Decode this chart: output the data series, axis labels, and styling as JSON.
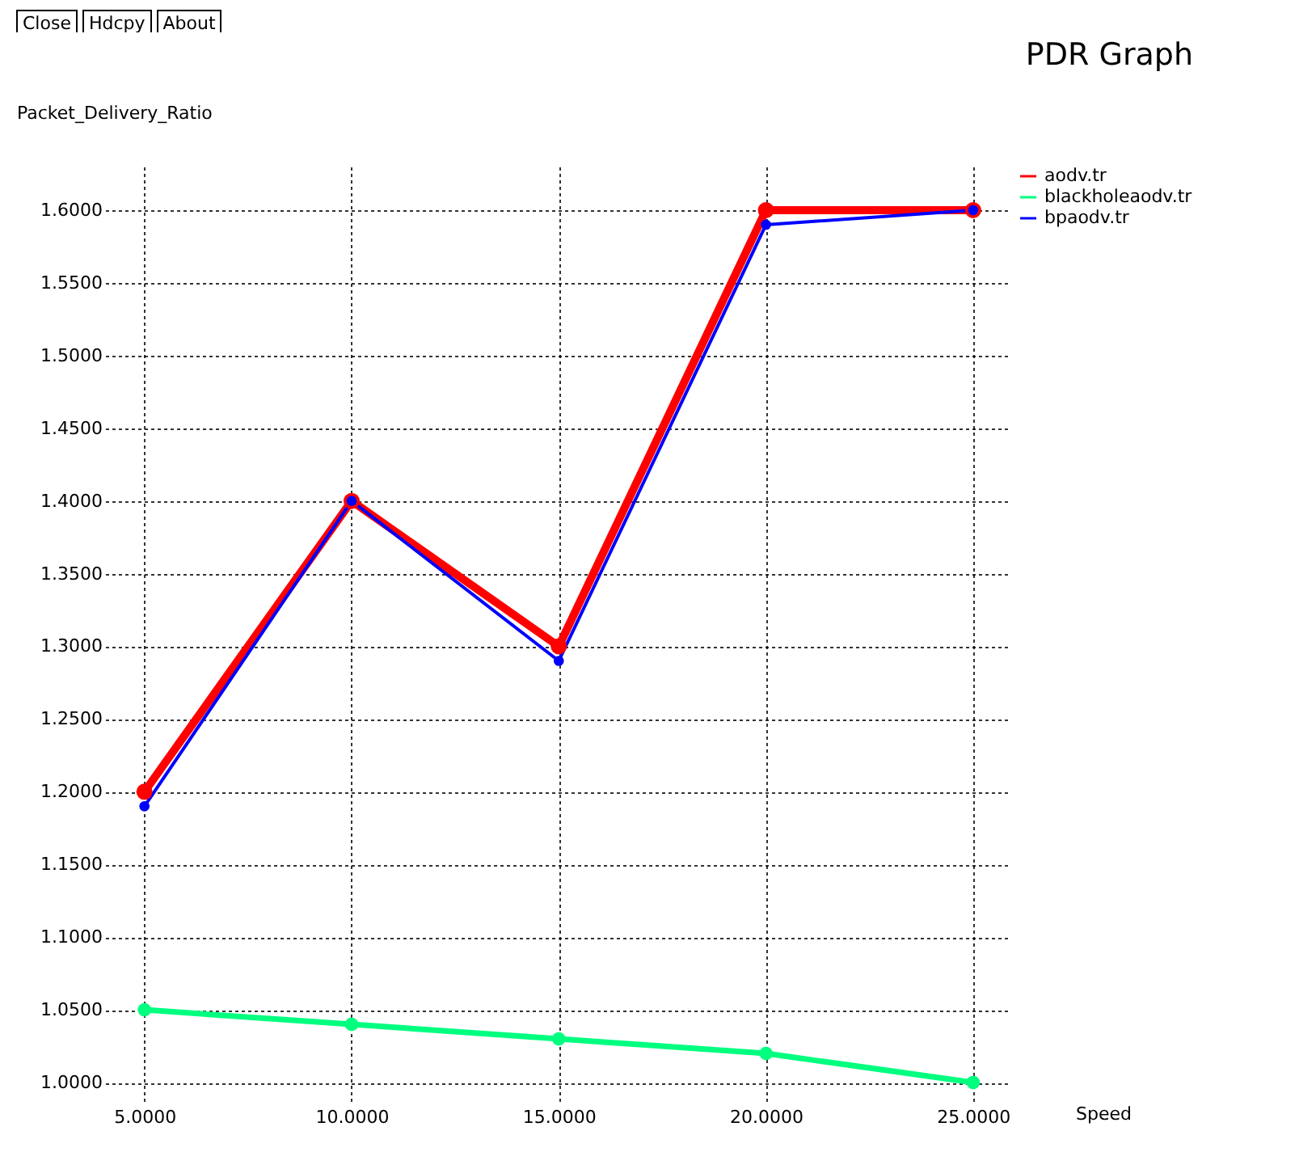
{
  "chart_data": {
    "type": "line",
    "title": "PDR Graph",
    "xlabel": "Speed",
    "ylabel": "Packet_Delivery_Ratio",
    "annotations": [
      "Close",
      "Hdcpy",
      "About"
    ],
    "x": [
      5,
      10,
      15,
      20,
      25
    ],
    "series": [
      {
        "name": "aodv.tr",
        "color": "#ff0000",
        "values": [
          1.2,
          1.4,
          1.3,
          1.6,
          1.6
        ]
      },
      {
        "name": "blackholeaodv.tr",
        "color": "#00ff7f",
        "values": [
          1.05,
          1.04,
          1.03,
          1.02,
          1.0
        ]
      },
      {
        "name": "bpaodv.tr",
        "color": "#0000ff",
        "values": [
          1.19,
          1.4,
          1.29,
          1.59,
          1.6
        ]
      }
    ],
    "xlim": [
      4.05,
      25.9
    ],
    "ylim": [
      0.985,
      1.63
    ],
    "xticks": [
      {
        "value": 5,
        "label": "5.0000"
      },
      {
        "value": 10,
        "label": "10.0000"
      },
      {
        "value": 15,
        "label": "15.0000"
      },
      {
        "value": 20,
        "label": "20.0000"
      },
      {
        "value": 25,
        "label": "25.0000"
      }
    ],
    "yticks": [
      {
        "value": 1,
        "label": "1.0000"
      },
      {
        "value": 1.05,
        "label": "1.0500"
      },
      {
        "value": 1.1,
        "label": "1.1000"
      },
      {
        "value": 1.15,
        "label": "1.1500"
      },
      {
        "value": 1.2,
        "label": "1.2000"
      },
      {
        "value": 1.25,
        "label": "1.2500"
      },
      {
        "value": 1.3,
        "label": "1.3000"
      },
      {
        "value": 1.35,
        "label": "1.3500"
      },
      {
        "value": 1.4,
        "label": "1.4000"
      },
      {
        "value": 1.45,
        "label": "1.4500"
      },
      {
        "value": 1.5,
        "label": "1.5000"
      },
      {
        "value": 1.55,
        "label": "1.5500"
      },
      {
        "value": 1.6,
        "label": "1.6000"
      }
    ],
    "grid": true,
    "legend": "top right",
    "marker": "circle",
    "line_style": "solid"
  }
}
